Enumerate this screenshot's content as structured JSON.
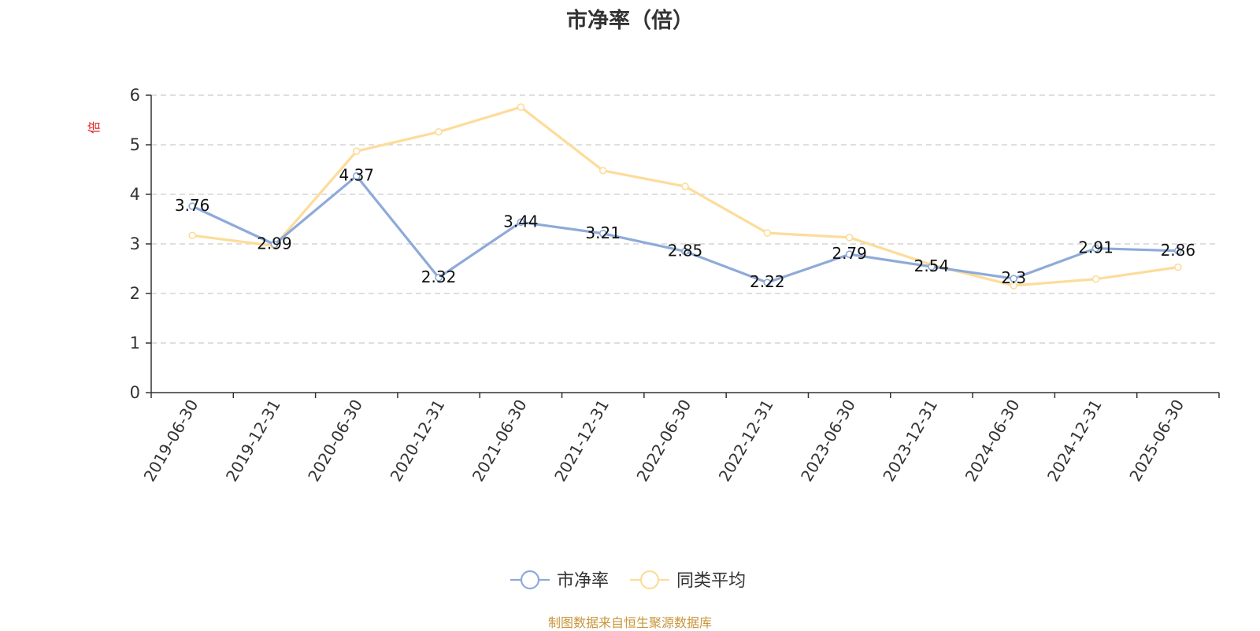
{
  "chart_data": {
    "type": "line",
    "title": "市净率（倍）",
    "ylabel": "倍",
    "xlabel": "",
    "categories": [
      "2019-06-30",
      "2019-12-31",
      "2020-06-30",
      "2020-12-31",
      "2021-06-30",
      "2021-12-31",
      "2022-06-30",
      "2022-12-31",
      "2023-06-30",
      "2023-12-31",
      "2024-06-30",
      "2024-12-31",
      "2025-06-30"
    ],
    "series": [
      {
        "name": "市净率",
        "values": [
          3.76,
          2.99,
          4.37,
          2.32,
          3.44,
          3.21,
          2.85,
          2.22,
          2.79,
          2.54,
          2.3,
          2.91,
          2.86
        ],
        "labels": [
          "3.76",
          "2.99",
          "4.37",
          "2.32",
          "3.44",
          "3.21",
          "2.85",
          "2.22",
          "2.79",
          "2.54",
          "2.3",
          "2.91",
          "2.86"
        ],
        "color": "#8eaad8"
      },
      {
        "name": "同类平均",
        "values": [
          3.17,
          2.96,
          4.87,
          5.26,
          5.76,
          4.48,
          4.16,
          3.22,
          3.13,
          2.58,
          2.16,
          2.29,
          2.53
        ],
        "color": "#fddc9a"
      }
    ],
    "ylim": [
      0,
      6
    ],
    "yticks": [
      0,
      1,
      2,
      3,
      4,
      5,
      6
    ],
    "grid": true,
    "legend": "bottom-center"
  },
  "source_note": "制图数据来自恒生聚源数据库",
  "colors": {
    "unit_label": "#e02020",
    "source_note": "#c8963c",
    "axis": "#333333",
    "grid": "#cccccc"
  }
}
